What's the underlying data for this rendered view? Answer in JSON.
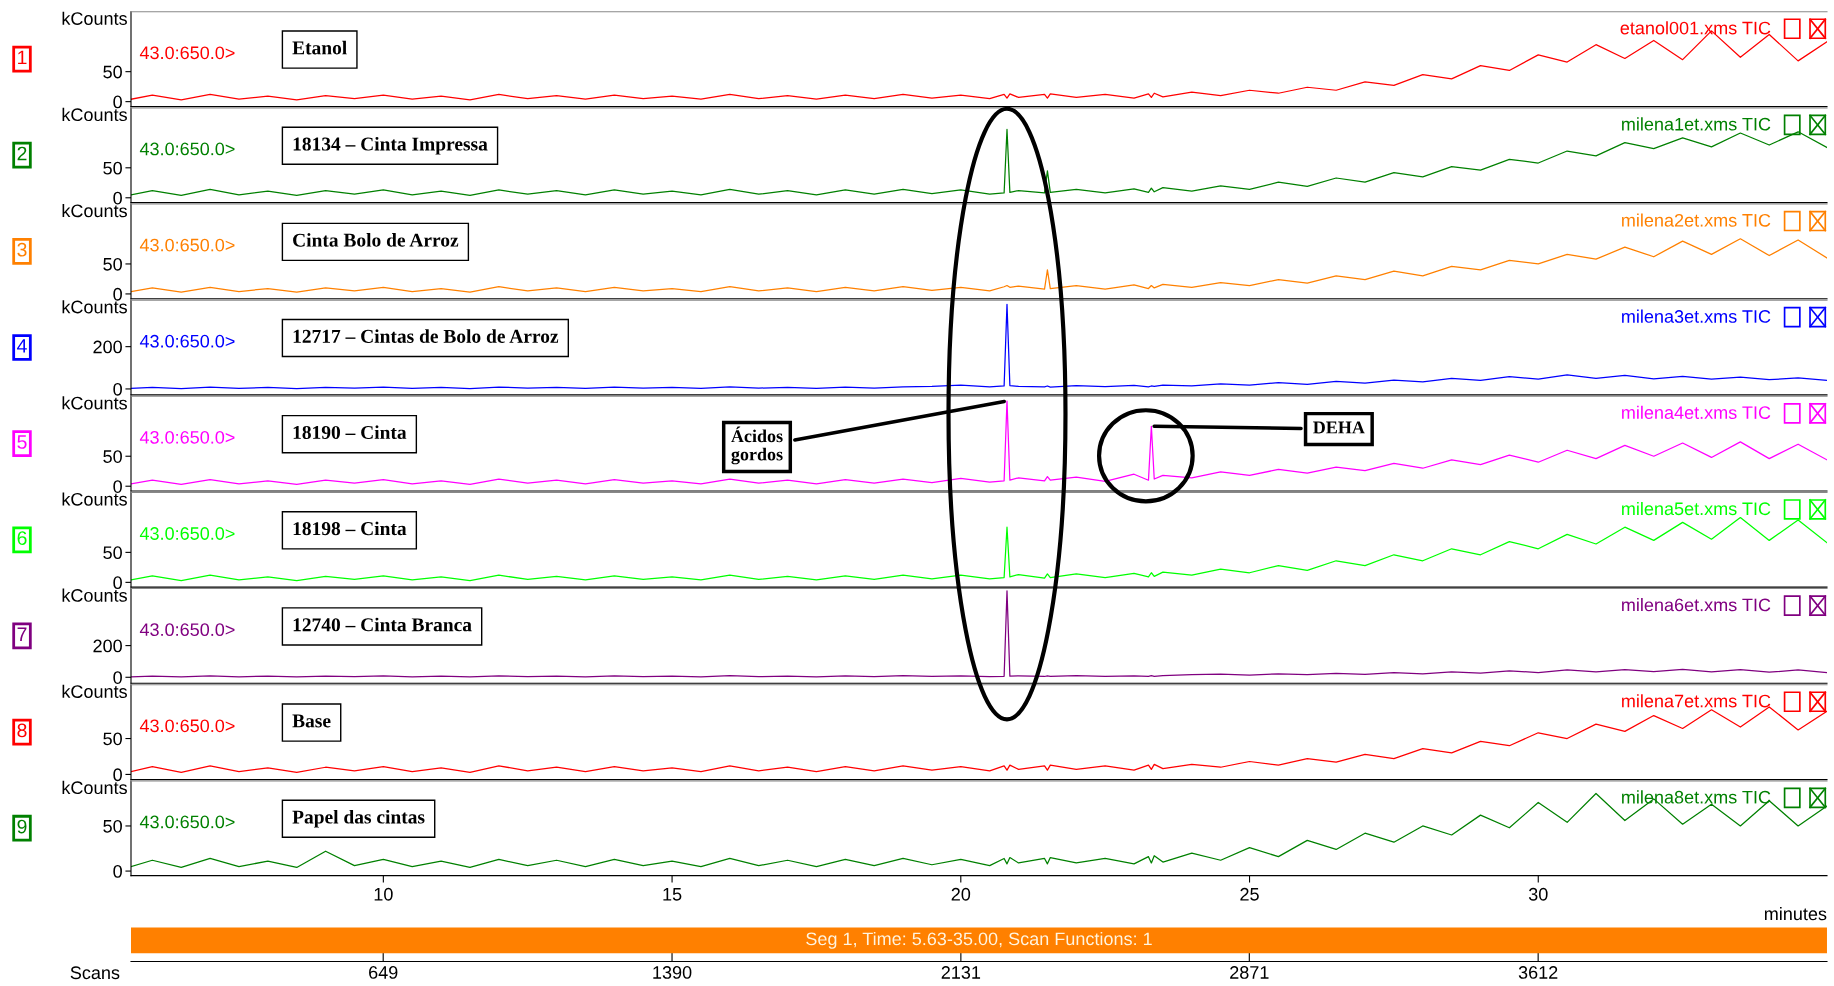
{
  "chart_data": [
    {
      "type": "line",
      "ylabel": "kCounts",
      "xlim": [
        5.63,
        35
      ],
      "ylim": [
        -8,
        150
      ],
      "yticks": [
        0,
        50
      ],
      "tick_labels": "y",
      "x": [
        5.63,
        6,
        6.5,
        7,
        7.5,
        8,
        8.5,
        9,
        9.5,
        10,
        10.5,
        11,
        11.5,
        12,
        12.5,
        13,
        13.5,
        14,
        14.5,
        15,
        15.5,
        16,
        16.5,
        17,
        17.5,
        18,
        18.5,
        19,
        19.5,
        20,
        20.5,
        20.75,
        20.8,
        20.85,
        21,
        21.45,
        21.5,
        21.55,
        22,
        22.5,
        23,
        23.25,
        23.3,
        23.35,
        23.5,
        24,
        24.5,
        25,
        25.5,
        26,
        26.5,
        27,
        27.5,
        28,
        28.5,
        29,
        29.5,
        30,
        30.5,
        31,
        31.5,
        32,
        32.5,
        33,
        33.5,
        34,
        34.5,
        35
      ],
      "series": [
        {
          "color": "#ff0000",
          "values": [
            4,
            11,
            3,
            12,
            4,
            9,
            3,
            10,
            5,
            11,
            4,
            9,
            3,
            12,
            5,
            10,
            4,
            11,
            5,
            9,
            4,
            12,
            5,
            10,
            4,
            11,
            5,
            12,
            6,
            11,
            5,
            12,
            6,
            13,
            7,
            12,
            6,
            13,
            7,
            12,
            6,
            13,
            7,
            14,
            8,
            16,
            10,
            19,
            14,
            24,
            19,
            33,
            27,
            45,
            38,
            60,
            52,
            78,
            66,
            95,
            72,
            102,
            70,
            118,
            74,
            112,
            68,
            100
          ]
        }
      ],
      "annotations": [
        "1",
        "43.0:650.0>",
        "etanol001.xms TIC",
        "Etanol"
      ]
    },
    {
      "type": "line",
      "ylabel": "kCounts",
      "xlim": [
        5.63,
        35
      ],
      "ylim": [
        -8,
        150
      ],
      "yticks": [
        0,
        50
      ],
      "tick_labels": "y",
      "x": [
        5.63,
        6,
        6.5,
        7,
        7.5,
        8,
        8.5,
        9,
        9.5,
        10,
        10.5,
        11,
        11.5,
        12,
        12.5,
        13,
        13.5,
        14,
        14.5,
        15,
        15.5,
        16,
        16.5,
        17,
        17.5,
        18,
        18.5,
        19,
        19.5,
        20,
        20.5,
        20.75,
        20.8,
        20.85,
        21,
        21.45,
        21.5,
        21.55,
        22,
        22.5,
        23,
        23.25,
        23.3,
        23.35,
        23.5,
        24,
        24.5,
        25,
        25.5,
        26,
        26.5,
        27,
        27.5,
        28,
        28.5,
        29,
        29.5,
        30,
        30.5,
        31,
        31.5,
        32,
        32.5,
        33,
        33.5,
        34,
        34.5,
        35
      ],
      "series": [
        {
          "color": "#008000",
          "values": [
            5,
            12,
            4,
            14,
            5,
            11,
            4,
            12,
            6,
            13,
            5,
            11,
            4,
            13,
            6,
            12,
            5,
            13,
            6,
            11,
            5,
            14,
            6,
            12,
            5,
            13,
            6,
            14,
            7,
            13,
            6,
            8,
            114,
            9,
            12,
            8,
            45,
            9,
            14,
            8,
            15,
            9,
            16,
            10,
            17,
            11,
            20,
            14,
            26,
            19,
            33,
            26,
            42,
            35,
            52,
            46,
            64,
            58,
            78,
            70,
            92,
            82,
            100,
            85,
            108,
            88,
            110,
            84
          ]
        }
      ],
      "annotations": [
        "2",
        "43.0:650.0>",
        "milena1et.xms TIC",
        "18134 – Cinta Impressa"
      ]
    },
    {
      "type": "line",
      "ylabel": "kCounts",
      "xlim": [
        5.63,
        35
      ],
      "ylim": [
        -8,
        150
      ],
      "yticks": [
        0,
        50
      ],
      "tick_labels": "y",
      "x": [
        5.63,
        6,
        6.5,
        7,
        7.5,
        8,
        8.5,
        9,
        9.5,
        10,
        10.5,
        11,
        11.5,
        12,
        12.5,
        13,
        13.5,
        14,
        14.5,
        15,
        15.5,
        16,
        16.5,
        17,
        17.5,
        18,
        18.5,
        19,
        19.5,
        20,
        20.5,
        20.75,
        20.8,
        20.85,
        21,
        21.45,
        21.5,
        21.55,
        22,
        22.5,
        23,
        23.25,
        23.3,
        23.35,
        23.5,
        24,
        24.5,
        25,
        25.5,
        26,
        26.5,
        27,
        27.5,
        28,
        28.5,
        29,
        29.5,
        30,
        30.5,
        31,
        31.5,
        32,
        32.5,
        33,
        33.5,
        34,
        34.5,
        35
      ],
      "series": [
        {
          "color": "#ff8000",
          "values": [
            4,
            10,
            3,
            11,
            4,
            9,
            3,
            10,
            5,
            11,
            4,
            9,
            3,
            12,
            5,
            10,
            4,
            11,
            5,
            9,
            4,
            12,
            5,
            10,
            4,
            11,
            5,
            12,
            6,
            11,
            5,
            12,
            14,
            11,
            13,
            8,
            40,
            9,
            14,
            8,
            15,
            9,
            14,
            10,
            16,
            11,
            19,
            14,
            24,
            18,
            30,
            24,
            38,
            30,
            46,
            40,
            56,
            50,
            66,
            58,
            78,
            62,
            88,
            66,
            92,
            64,
            90,
            60
          ]
        }
      ],
      "annotations": [
        "3",
        "43.0:650.0>",
        "milena2et.xms TIC",
        "Cinta Bolo de Arroz"
      ]
    },
    {
      "type": "line",
      "ylabel": "kCounts",
      "xlim": [
        5.63,
        35
      ],
      "ylim": [
        -28,
        420
      ],
      "yticks": [
        0,
        200
      ],
      "tick_labels": "y",
      "x": [
        5.63,
        6,
        6.5,
        7,
        7.5,
        8,
        8.5,
        9,
        9.5,
        10,
        10.5,
        11,
        11.5,
        12,
        12.5,
        13,
        13.5,
        14,
        14.5,
        15,
        15.5,
        16,
        16.5,
        17,
        17.5,
        18,
        18.5,
        19,
        19.5,
        20,
        20.5,
        20.75,
        20.8,
        20.85,
        21,
        21.45,
        21.5,
        21.55,
        22,
        22.5,
        23,
        23.25,
        23.3,
        23.35,
        23.5,
        24,
        24.5,
        25,
        25.5,
        26,
        26.5,
        27,
        27.5,
        28,
        28.5,
        29,
        29.5,
        30,
        30.5,
        31,
        31.5,
        32,
        32.5,
        33,
        33.5,
        34,
        34.5,
        35
      ],
      "series": [
        {
          "color": "#0000ff",
          "values": [
            3,
            8,
            2,
            9,
            3,
            7,
            2,
            8,
            4,
            9,
            3,
            7,
            2,
            9,
            4,
            8,
            3,
            9,
            4,
            7,
            3,
            10,
            4,
            8,
            3,
            9,
            4,
            10,
            12,
            18,
            10,
            14,
            400,
            16,
            12,
            10,
            14,
            9,
            16,
            11,
            17,
            10,
            14,
            12,
            18,
            14,
            24,
            18,
            30,
            22,
            36,
            28,
            42,
            34,
            50,
            40,
            58,
            46,
            66,
            50,
            64,
            48,
            60,
            46,
            56,
            44,
            52,
            40
          ]
        }
      ],
      "annotations": [
        "4",
        "43.0:650.0>",
        "milena3et.xms TIC",
        "12717 – Cintas de Bolo de Arroz"
      ]
    },
    {
      "type": "line",
      "ylabel": "kCounts",
      "xlim": [
        5.63,
        35
      ],
      "ylim": [
        -8,
        150
      ],
      "yticks": [
        0,
        50
      ],
      "tick_labels": "y",
      "x": [
        5.63,
        6,
        6.5,
        7,
        7.5,
        8,
        8.5,
        9,
        9.5,
        10,
        10.5,
        11,
        11.5,
        12,
        12.5,
        13,
        13.5,
        14,
        14.5,
        15,
        15.5,
        16,
        16.5,
        17,
        17.5,
        18,
        18.5,
        19,
        19.5,
        20,
        20.5,
        20.75,
        20.8,
        20.85,
        21,
        21.45,
        21.5,
        21.55,
        22,
        22.5,
        23,
        23.25,
        23.3,
        23.35,
        23.5,
        24,
        24.5,
        25,
        25.5,
        26,
        26.5,
        27,
        27.5,
        28,
        28.5,
        29,
        29.5,
        30,
        30.5,
        31,
        31.5,
        32,
        32.5,
        33,
        33.5,
        34,
        34.5,
        35
      ],
      "series": [
        {
          "color": "#ff00ff",
          "values": [
            4,
            10,
            3,
            11,
            4,
            9,
            3,
            10,
            5,
            11,
            4,
            9,
            3,
            12,
            5,
            10,
            4,
            11,
            5,
            9,
            4,
            12,
            5,
            10,
            4,
            11,
            5,
            12,
            6,
            13,
            7,
            9,
            142,
            10,
            14,
            9,
            16,
            10,
            15,
            8,
            20,
            10,
            100,
            12,
            18,
            14,
            24,
            18,
            28,
            22,
            32,
            26,
            38,
            30,
            44,
            36,
            52,
            40,
            60,
            46,
            68,
            50,
            72,
            48,
            74,
            46,
            70,
            44
          ]
        }
      ],
      "annotations": [
        "5",
        "43.0:650.0>",
        "milena4et.xms TIC",
        "18190 – Cinta",
        {
          "text": "Ácidos\ngordos",
          "x": 20.8,
          "y": 142
        },
        {
          "text": "DEHA",
          "x": 23.3,
          "y": 100
        }
      ]
    },
    {
      "type": "line",
      "ylabel": "kCounts",
      "xlim": [
        5.63,
        35
      ],
      "ylim": [
        -8,
        150
      ],
      "yticks": [
        0,
        50
      ],
      "tick_labels": "y",
      "x": [
        5.63,
        6,
        6.5,
        7,
        7.5,
        8,
        8.5,
        9,
        9.5,
        10,
        10.5,
        11,
        11.5,
        12,
        12.5,
        13,
        13.5,
        14,
        14.5,
        15,
        15.5,
        16,
        16.5,
        17,
        17.5,
        18,
        18.5,
        19,
        19.5,
        20,
        20.5,
        20.75,
        20.8,
        20.85,
        21,
        21.45,
        21.5,
        21.55,
        22,
        22.5,
        23,
        23.25,
        23.3,
        23.35,
        23.5,
        24,
        24.5,
        25,
        25.5,
        26,
        26.5,
        27,
        27.5,
        28,
        28.5,
        29,
        29.5,
        30,
        30.5,
        31,
        31.5,
        32,
        32.5,
        33,
        33.5,
        34,
        34.5,
        35
      ],
      "series": [
        {
          "color": "#00ff00",
          "values": [
            4,
            11,
            3,
            12,
            4,
            9,
            3,
            10,
            5,
            11,
            4,
            9,
            3,
            12,
            5,
            10,
            4,
            11,
            5,
            9,
            4,
            12,
            5,
            10,
            4,
            11,
            5,
            12,
            6,
            12,
            6,
            8,
            92,
            9,
            13,
            7,
            14,
            8,
            14,
            8,
            15,
            9,
            16,
            10,
            17,
            12,
            22,
            16,
            28,
            20,
            36,
            28,
            46,
            36,
            56,
            46,
            68,
            56,
            80,
            64,
            92,
            70,
            100,
            72,
            108,
            70,
            104,
            66
          ]
        }
      ],
      "annotations": [
        "6",
        "43.0:650.0>",
        "milena5et.xms TIC",
        "18198 – Cinta"
      ]
    },
    {
      "type": "line",
      "ylabel": "kCounts",
      "xlim": [
        5.63,
        35
      ],
      "ylim": [
        -38,
        560
      ],
      "yticks": [
        0,
        200
      ],
      "tick_labels": "y",
      "x": [
        5.63,
        6,
        6.5,
        7,
        7.5,
        8,
        8.5,
        9,
        9.5,
        10,
        10.5,
        11,
        11.5,
        12,
        12.5,
        13,
        13.5,
        14,
        14.5,
        15,
        15.5,
        16,
        16.5,
        17,
        17.5,
        18,
        18.5,
        19,
        19.5,
        20,
        20.5,
        20.75,
        20.8,
        20.85,
        21,
        21.45,
        21.5,
        21.55,
        22,
        22.5,
        23,
        23.25,
        23.3,
        23.35,
        23.5,
        24,
        24.5,
        25,
        25.5,
        26,
        26.5,
        27,
        27.5,
        28,
        28.5,
        29,
        29.5,
        30,
        30.5,
        31,
        31.5,
        32,
        32.5,
        33,
        33.5,
        34,
        34.5,
        35
      ],
      "series": [
        {
          "color": "#800080",
          "values": [
            3,
            8,
            2,
            9,
            3,
            7,
            2,
            8,
            4,
            9,
            3,
            7,
            2,
            9,
            4,
            8,
            3,
            9,
            4,
            7,
            3,
            10,
            4,
            8,
            3,
            9,
            4,
            10,
            5,
            9,
            4,
            6,
            546,
            7,
            9,
            5,
            9,
            6,
            10,
            5,
            9,
            6,
            10,
            6,
            11,
            16,
            20,
            14,
            22,
            16,
            24,
            18,
            30,
            22,
            34,
            26,
            40,
            30,
            46,
            34,
            48,
            36,
            50,
            34,
            48,
            32,
            46,
            30
          ]
        }
      ],
      "annotations": [
        "7",
        "43.0:650.0>",
        "milena6et.xms TIC",
        "12740 – Cinta Branca"
      ]
    },
    {
      "type": "line",
      "ylabel": "kCounts",
      "xlim": [
        5.63,
        35
      ],
      "ylim": [
        -7,
        125
      ],
      "yticks": [
        0,
        50
      ],
      "tick_labels": "y",
      "x": [
        5.63,
        6,
        6.5,
        7,
        7.5,
        8,
        8.5,
        9,
        9.5,
        10,
        10.5,
        11,
        11.5,
        12,
        12.5,
        13,
        13.5,
        14,
        14.5,
        15,
        15.5,
        16,
        16.5,
        17,
        17.5,
        18,
        18.5,
        19,
        19.5,
        20,
        20.5,
        20.75,
        20.8,
        20.85,
        21,
        21.45,
        21.5,
        21.55,
        22,
        22.5,
        23,
        23.25,
        23.3,
        23.35,
        23.5,
        24,
        24.5,
        25,
        25.5,
        26,
        26.5,
        27,
        27.5,
        28,
        28.5,
        29,
        29.5,
        30,
        30.5,
        31,
        31.5,
        32,
        32.5,
        33,
        33.5,
        34,
        34.5,
        35
      ],
      "series": [
        {
          "color": "#ff0000",
          "values": [
            4,
            11,
            3,
            12,
            4,
            9,
            3,
            10,
            5,
            11,
            4,
            9,
            3,
            12,
            5,
            10,
            4,
            11,
            5,
            9,
            4,
            12,
            5,
            10,
            4,
            11,
            5,
            12,
            6,
            11,
            5,
            12,
            6,
            13,
            7,
            12,
            6,
            13,
            7,
            12,
            6,
            13,
            7,
            14,
            8,
            14,
            10,
            18,
            13,
            22,
            17,
            28,
            22,
            36,
            30,
            46,
            40,
            58,
            50,
            70,
            60,
            82,
            64,
            90,
            66,
            94,
            62,
            88
          ]
        }
      ],
      "annotations": [
        "8",
        "43.0:650.0>",
        "milena7et.xms TIC",
        "Base"
      ]
    },
    {
      "type": "line",
      "ylabel": "kCounts",
      "xlim": [
        5.63,
        35
      ],
      "ylim": [
        -5,
        100
      ],
      "yticks": [
        0,
        50
      ],
      "xticks": [
        10,
        15,
        20,
        25,
        30
      ],
      "xlabel": "minutes",
      "x2lim": [
        2,
        4353
      ],
      "x2ticks": [
        649,
        1390,
        2131,
        2871,
        3612
      ],
      "x2label": "Scans",
      "x": [
        5.63,
        6,
        6.5,
        7,
        7.5,
        8,
        8.5,
        9,
        9.5,
        10,
        10.5,
        11,
        11.5,
        12,
        12.5,
        13,
        13.5,
        14,
        14.5,
        15,
        15.5,
        16,
        16.5,
        17,
        17.5,
        18,
        18.5,
        19,
        19.5,
        20,
        20.5,
        20.75,
        20.8,
        20.85,
        21,
        21.45,
        21.5,
        21.55,
        22,
        22.5,
        23,
        23.25,
        23.3,
        23.35,
        23.5,
        24,
        24.5,
        25,
        25.5,
        26,
        26.5,
        27,
        27.5,
        28,
        28.5,
        29,
        29.5,
        30,
        30.5,
        31,
        31.5,
        32,
        32.5,
        33,
        33.5,
        34,
        34.5,
        35
      ],
      "series": [
        {
          "color": "#008000",
          "values": [
            5,
            12,
            4,
            14,
            5,
            11,
            4,
            22,
            6,
            13,
            5,
            11,
            4,
            13,
            6,
            12,
            5,
            13,
            6,
            11,
            5,
            14,
            6,
            12,
            5,
            13,
            6,
            14,
            7,
            13,
            6,
            14,
            8,
            15,
            9,
            14,
            8,
            15,
            9,
            14,
            8,
            16,
            9,
            17,
            10,
            20,
            12,
            26,
            16,
            34,
            24,
            42,
            32,
            50,
            40,
            62,
            48,
            76,
            54,
            86,
            56,
            80,
            52,
            74,
            50,
            78,
            50,
            72
          ]
        }
      ],
      "annotations": [
        "9",
        "43.0:650.0>",
        "milena8et.xms TIC",
        "Papel das cintas",
        "Seg 1, Time: 5.63-35.00, Scan Functions: 1"
      ]
    }
  ]
}
